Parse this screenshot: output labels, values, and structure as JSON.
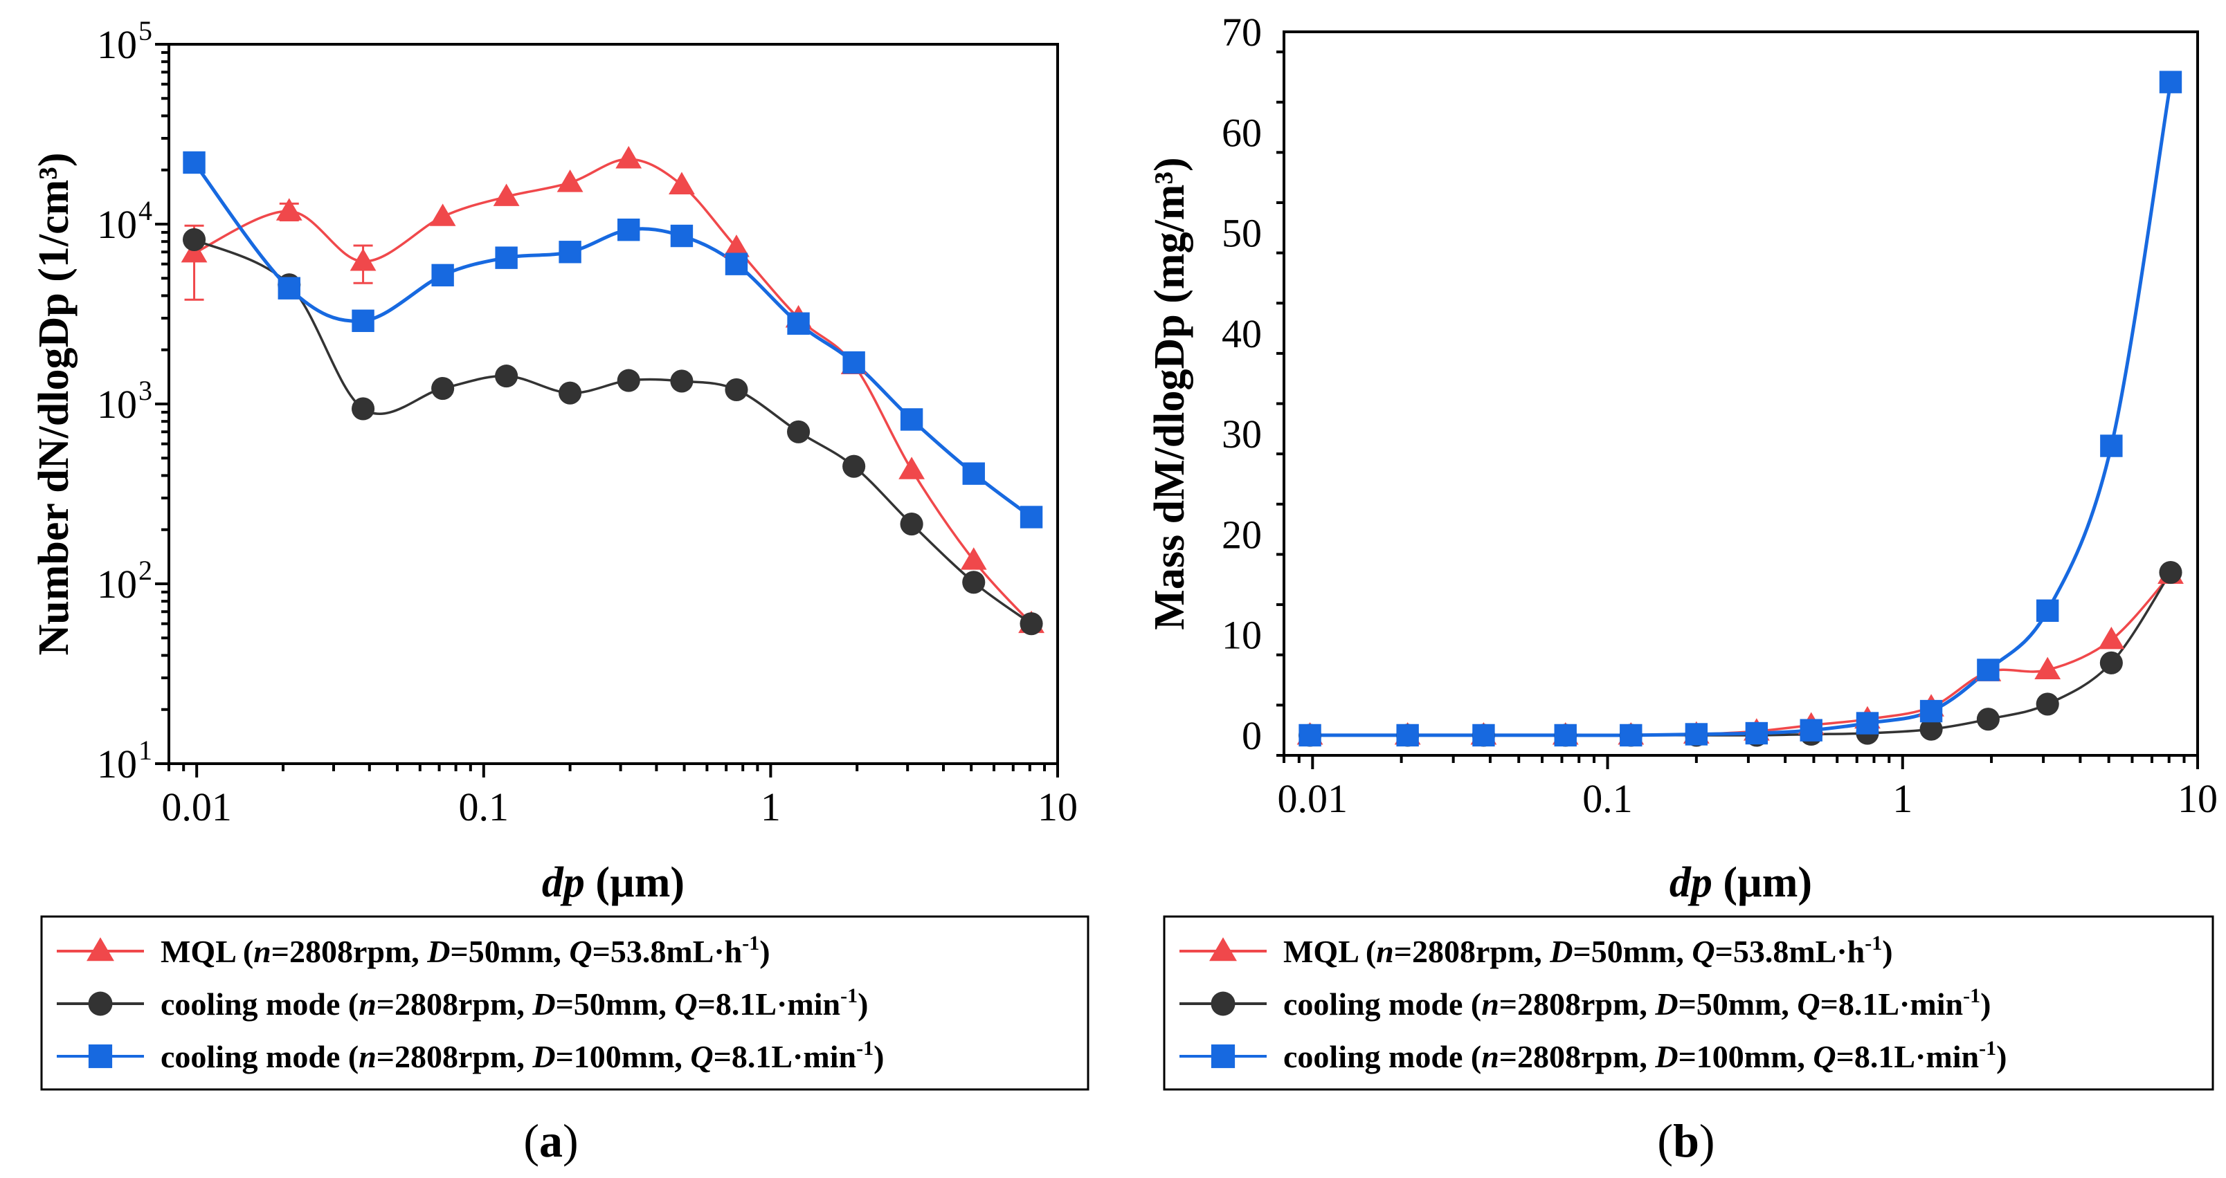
{
  "chart_data": [
    {
      "panel": "a",
      "caption": "a",
      "type": "line",
      "xscale": "log",
      "yscale": "log",
      "xlabel_italic": "dp",
      "xlabel_unit": "(µm)",
      "ylabel": "Number dN/dlogDp (1/cm³)",
      "xlim": [
        0.008,
        10
      ],
      "ylim": [
        10,
        100000
      ],
      "x_ticks": [
        {
          "v": 0.01,
          "label": "0.01"
        },
        {
          "v": 0.1,
          "label": "0.1"
        },
        {
          "v": 1,
          "label": "1"
        },
        {
          "v": 10,
          "label": "10"
        }
      ],
      "y_ticks": [
        {
          "v": 10,
          "base": "10",
          "exp": "1"
        },
        {
          "v": 100,
          "base": "10",
          "exp": "2"
        },
        {
          "v": 1000,
          "base": "10",
          "exp": "3"
        },
        {
          "v": 10000,
          "base": "10",
          "exp": "4"
        },
        {
          "v": 100000,
          "base": "10",
          "exp": "5"
        }
      ],
      "x": [
        0.0098,
        0.021,
        0.038,
        0.072,
        0.12,
        0.2,
        0.32,
        0.49,
        0.76,
        1.25,
        1.95,
        3.1,
        5.1,
        8.1
      ],
      "series": [
        {
          "name": "MQL",
          "color": "#f0484b",
          "marker": "triangle",
          "values": [
            6900,
            11800,
            6200,
            11000,
            14200,
            17000,
            23000,
            16500,
            7400,
            3000,
            1650,
            430,
            135,
            60
          ],
          "error_low": [
            3800,
            10500,
            4700,
            null,
            null,
            null,
            null,
            null,
            null,
            null,
            null,
            null,
            null,
            null
          ],
          "error_high": [
            9800,
            13000,
            7600,
            null,
            null,
            null,
            null,
            null,
            null,
            null,
            null,
            null,
            null,
            null
          ]
        },
        {
          "name": "cooling mode D=50mm",
          "color": "#333333",
          "marker": "circle",
          "values": [
            8200,
            4600,
            940,
            1220,
            1430,
            1150,
            1350,
            1340,
            1200,
            700,
            450,
            215,
            102,
            60
          ]
        },
        {
          "name": "cooling mode D=100mm",
          "color": "#1769e0",
          "marker": "square",
          "values": [
            22000,
            4400,
            2900,
            5200,
            6500,
            7000,
            9300,
            8600,
            6000,
            2800,
            1700,
            820,
            410,
            235
          ]
        }
      ]
    },
    {
      "panel": "b",
      "caption": "b",
      "type": "line",
      "xscale": "log",
      "yscale": "linear",
      "xlabel_italic": "dp",
      "xlabel_unit": "(µm)",
      "ylabel": "Mass dM/dlogDp (mg/m³)",
      "xlim": [
        0.008,
        10
      ],
      "ylim": [
        -2,
        70
      ],
      "x_ticks": [
        {
          "v": 0.01,
          "label": "0.01"
        },
        {
          "v": 0.1,
          "label": "0.1"
        },
        {
          "v": 1,
          "label": "1"
        },
        {
          "v": 10,
          "label": "10"
        }
      ],
      "y_ticks": [
        {
          "v": 0,
          "label": "0"
        },
        {
          "v": 10,
          "label": "10"
        },
        {
          "v": 20,
          "label": "20"
        },
        {
          "v": 30,
          "label": "30"
        },
        {
          "v": 40,
          "label": "40"
        },
        {
          "v": 50,
          "label": "50"
        },
        {
          "v": 60,
          "label": "60"
        },
        {
          "v": 70,
          "label": "70"
        }
      ],
      "x": [
        0.0098,
        0.021,
        0.038,
        0.072,
        0.12,
        0.2,
        0.32,
        0.49,
        0.76,
        1.25,
        1.95,
        3.1,
        5.1,
        8.1
      ],
      "series": [
        {
          "name": "MQL",
          "color": "#f0484b",
          "marker": "triangle",
          "values": [
            0,
            0,
            0,
            0,
            0,
            0.1,
            0.4,
            1.0,
            1.6,
            2.8,
            6.3,
            6.5,
            9.5,
            16.0
          ]
        },
        {
          "name": "cooling mode D=50mm",
          "color": "#333333",
          "marker": "circle",
          "values": [
            0,
            0,
            0,
            0,
            0,
            0,
            0,
            0.1,
            0.2,
            0.6,
            1.6,
            3.1,
            7.2,
            16.2
          ]
        },
        {
          "name": "cooling mode D=100mm",
          "color": "#1769e0",
          "marker": "square",
          "values": [
            0,
            0,
            0,
            0,
            0,
            0.1,
            0.2,
            0.5,
            1.2,
            2.4,
            6.5,
            12.4,
            28.8,
            65.0
          ]
        }
      ]
    }
  ],
  "legend": [
    {
      "label": "MQL",
      "color": "#f0484b",
      "marker": "triangle",
      "params": [
        {
          "it": "n",
          "txt": "=2808rpm, "
        },
        {
          "it": "D",
          "txt": "=50mm, "
        },
        {
          "it": "Q",
          "txt": "=53.8mL·h"
        }
      ],
      "sup": "-1"
    },
    {
      "label": "cooling mode",
      "color": "#333333",
      "marker": "circle",
      "params": [
        {
          "it": "n",
          "txt": "=2808rpm, "
        },
        {
          "it": "D",
          "txt": "=50mm, "
        },
        {
          "it": "Q",
          "txt": "=8.1L·min"
        }
      ],
      "sup": "-1"
    },
    {
      "label": "cooling mode",
      "color": "#1769e0",
      "marker": "square",
      "params": [
        {
          "it": "n",
          "txt": "=2808rpm, "
        },
        {
          "it": "D",
          "txt": "=100mm, "
        },
        {
          "it": "Q",
          "txt": "=8.1L·min"
        }
      ],
      "sup": "-1"
    }
  ]
}
